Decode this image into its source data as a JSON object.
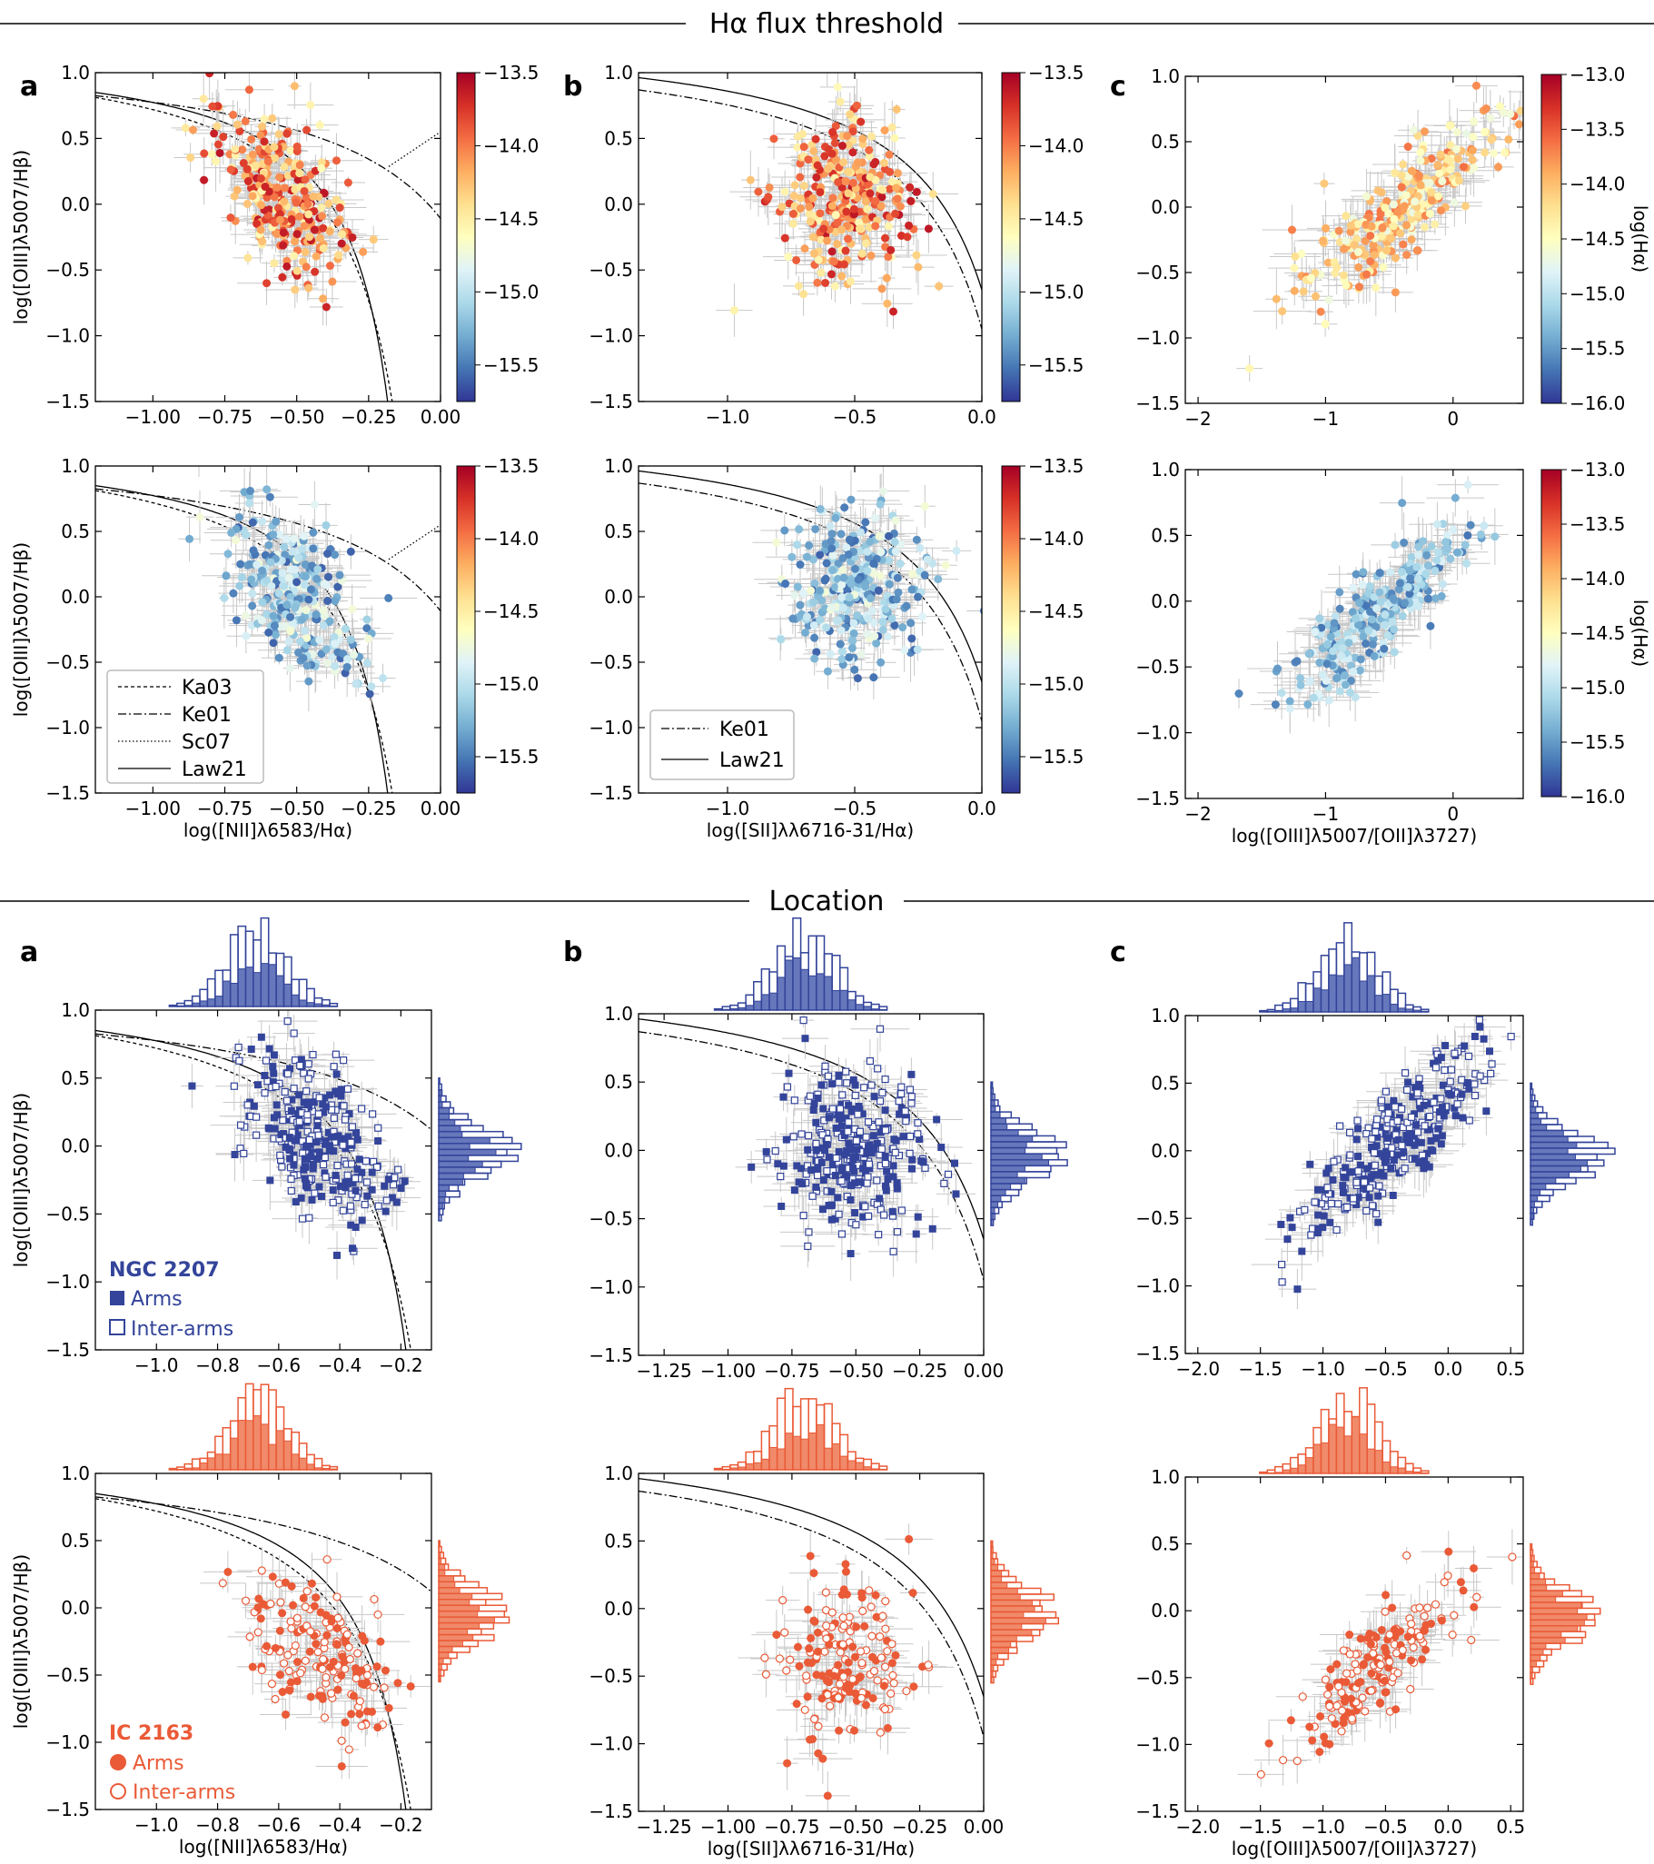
{
  "sections": {
    "top": "Hα flux threshold",
    "bottom": "Location"
  },
  "panel_letters": [
    "a",
    "b",
    "c"
  ],
  "labels": {
    "y_o3hb": "log([OIII]λ5007/Hβ)",
    "x_n2": "log([NII]λ6583/Hα)",
    "x_s2": "log([SII]λλ6716-31/Hα)",
    "x_o3o2": "log([OIII]λ5007/[OII]λ3727)",
    "cbar": "log(Hα)"
  },
  "legend_lines": [
    "Ka03",
    "Ke01",
    "Sc07",
    "Law21"
  ],
  "legend_lines_s2": [
    "Ke01",
    "Law21"
  ],
  "groups": {
    "ngc": {
      "name": "NGC 2207",
      "arms": "Arms",
      "inter": "Inter-arms",
      "color": "#33449a"
    },
    "ic": {
      "name": "IC 2163",
      "arms": "Arms",
      "inter": "Inter-arms",
      "color": "#ea5a37"
    }
  },
  "colors": {
    "errorbar": "#c8c8c8"
  },
  "chart_data": [
    {
      "id": "top_a_bright",
      "type": "scatter",
      "xlabel": "",
      "ylabel": "log([OIII]λ5007/Hβ)",
      "xlim": [
        -1.2,
        0.0
      ],
      "ylim": [
        -1.5,
        1.0
      ],
      "xticks": [
        "-1.00",
        "-0.75",
        "-0.50",
        "-0.25",
        "0.00"
      ],
      "yticks": [
        "-1.5",
        "-1.0",
        "-0.5",
        "0.0",
        "0.5",
        "1.0"
      ],
      "colorbar": {
        "range": [
          -15.75,
          -13.5
        ],
        "ticks": [
          "-15.5",
          "-15.0",
          "-14.5",
          "-14.0",
          "-13.5"
        ]
      },
      "cloud": {
        "center": [
          -0.55,
          0.05
        ],
        "color_range": [
          -14.6,
          -13.6
        ]
      },
      "curves": [
        "Ka03",
        "Ke01",
        "Sc07",
        "Law21"
      ]
    },
    {
      "id": "top_b_bright",
      "type": "scatter",
      "xlabel": "",
      "ylabel": "",
      "xlim": [
        -1.35,
        0.0
      ],
      "ylim": [
        -1.5,
        1.0
      ],
      "xticks": [
        "-1.0",
        "-0.5",
        "0.0"
      ],
      "yticks": [
        "-1.5",
        "-1.0",
        "-0.5",
        "0.0",
        "0.5",
        "1.0"
      ],
      "colorbar": {
        "range": [
          -15.75,
          -13.5
        ],
        "ticks": [
          "-15.5",
          "-15.0",
          "-14.5",
          "-14.0",
          "-13.5"
        ]
      },
      "cloud": {
        "center": [
          -0.55,
          0.0
        ],
        "color_range": [
          -14.6,
          -13.6
        ]
      },
      "curves": [
        "Ke01",
        "Law21"
      ]
    },
    {
      "id": "top_c_bright",
      "type": "scatter",
      "xlabel": "",
      "ylabel": "",
      "xlim": [
        -2.1,
        0.55
      ],
      "ylim": [
        -1.5,
        1.0
      ],
      "xticks": [
        "-2",
        "-1",
        "0"
      ],
      "yticks": [
        "-1.5",
        "-1.0",
        "-0.5",
        "0.0",
        "0.5",
        "1.0"
      ],
      "colorbar": {
        "range": [
          -16.0,
          -13.0
        ],
        "ticks": [
          "-16.0",
          "-15.5",
          "-15.0",
          "-14.5",
          "-14.0",
          "-13.5",
          "-13.0"
        ],
        "label": "log(Hα)"
      },
      "cloud": {
        "center": [
          -0.4,
          0.0
        ],
        "color_range": [
          -14.7,
          -13.6
        ]
      }
    },
    {
      "id": "top_a_faint",
      "type": "scatter",
      "xlabel": "log([NII]λ6583/Hα)",
      "ylabel": "log([OIII]λ5007/Hβ)",
      "xlim": [
        -1.2,
        0.0
      ],
      "ylim": [
        -1.5,
        1.0
      ],
      "xticks": [
        "-1.00",
        "-0.75",
        "-0.50",
        "-0.25",
        "0.00"
      ],
      "yticks": [
        "-1.5",
        "-1.0",
        "-0.5",
        "0.0",
        "0.5",
        "1.0"
      ],
      "colorbar": {
        "range": [
          -15.75,
          -13.5
        ],
        "ticks": [
          "-15.5",
          "-15.0",
          "-14.5",
          "-14.0",
          "-13.5"
        ]
      },
      "cloud": {
        "center": [
          -0.5,
          0.0
        ],
        "color_range": [
          -15.6,
          -14.7
        ]
      },
      "curves": [
        "Ka03",
        "Ke01",
        "Sc07",
        "Law21"
      ]
    },
    {
      "id": "top_b_faint",
      "type": "scatter",
      "xlabel": "log([SII]λλ6716-31/Hα)",
      "ylabel": "",
      "xlim": [
        -1.35,
        0.0
      ],
      "ylim": [
        -1.5,
        1.0
      ],
      "xticks": [
        "-1.0",
        "-0.5",
        "0.0"
      ],
      "yticks": [
        "-1.5",
        "-1.0",
        "-0.5",
        "0.0",
        "0.5",
        "1.0"
      ],
      "colorbar": {
        "range": [
          -15.75,
          -13.5
        ],
        "ticks": [
          "-15.5",
          "-15.0",
          "-14.5",
          "-14.0",
          "-13.5"
        ]
      },
      "cloud": {
        "center": [
          -0.5,
          0.05
        ],
        "color_range": [
          -15.6,
          -14.7
        ]
      },
      "curves": [
        "Ke01",
        "Law21"
      ]
    },
    {
      "id": "top_c_faint",
      "type": "scatter",
      "xlabel": "log([OIII]λ5007/[OII]λ3727)",
      "ylabel": "",
      "xlim": [
        -2.1,
        0.55
      ],
      "ylim": [
        -1.5,
        1.0
      ],
      "xticks": [
        "-2",
        "-1",
        "0"
      ],
      "yticks": [
        "-1.5",
        "-1.0",
        "-0.5",
        "0.0",
        "0.5",
        "1.0"
      ],
      "colorbar": {
        "range": [
          -16.0,
          -13.0
        ],
        "ticks": [
          "-16.0",
          "-15.5",
          "-15.0",
          "-14.5",
          "-14.0",
          "-13.5",
          "-13.0"
        ],
        "label": "log(Hα)"
      },
      "cloud": {
        "center": [
          -0.6,
          -0.1
        ],
        "color_range": [
          -15.7,
          -14.8
        ]
      }
    },
    {
      "id": "loc_a_ngc",
      "type": "scatter",
      "xlabel": "",
      "ylabel": "log([OIII]λ5007/Hβ)",
      "xlim": [
        -1.2,
        -0.1
      ],
      "ylim": [
        -1.5,
        1.0
      ],
      "xticks": [
        "-1.0",
        "-0.8",
        "-0.6",
        "-0.4",
        "-0.2"
      ],
      "yticks": [
        "-1.5",
        "-1.0",
        "-0.5",
        "0.0",
        "0.5",
        "1.0"
      ],
      "series": [
        {
          "name": "Arms",
          "marker": "filled-square"
        },
        {
          "name": "Inter-arms",
          "marker": "open-square"
        }
      ],
      "cloud": {
        "center": [
          -0.48,
          0.05
        ]
      },
      "curves": [
        "Ka03",
        "Ke01",
        "Law21"
      ]
    },
    {
      "id": "loc_b_ngc",
      "type": "scatter",
      "xlabel": "",
      "ylabel": "",
      "xlim": [
        -1.35,
        0.0
      ],
      "ylim": [
        -1.5,
        1.0
      ],
      "xticks": [
        "-1.25",
        "-1.00",
        "-0.75",
        "-0.50",
        "-0.25",
        "0.00"
      ],
      "yticks": [
        "-1.5",
        "-1.0",
        "-0.5",
        "0.0",
        "0.5",
        "1.0"
      ],
      "series": [
        {
          "name": "Arms",
          "marker": "filled-square"
        },
        {
          "name": "Inter-arms",
          "marker": "open-square"
        }
      ],
      "cloud": {
        "center": [
          -0.5,
          0.0
        ]
      },
      "curves": [
        "Ke01",
        "Law21"
      ]
    },
    {
      "id": "loc_c_ngc",
      "type": "scatter",
      "xlabel": "",
      "ylabel": "",
      "xlim": [
        -2.1,
        0.6
      ],
      "ylim": [
        -1.5,
        1.0
      ],
      "xticks": [
        "-2.0",
        "-1.5",
        "-1.0",
        "-0.5",
        "0.0",
        "0.5"
      ],
      "yticks": [
        "-1.5",
        "-1.0",
        "-0.5",
        "0.0",
        "0.5",
        "1.0"
      ],
      "series": [
        {
          "name": "Arms",
          "marker": "filled-square"
        },
        {
          "name": "Inter-arms",
          "marker": "open-square"
        }
      ],
      "cloud": {
        "center": [
          -0.45,
          0.05
        ]
      }
    },
    {
      "id": "loc_a_ic",
      "type": "scatter",
      "xlabel": "log([NII]λ6583/Hα)",
      "ylabel": "log([OIII]λ5007/Hβ)",
      "xlim": [
        -1.2,
        -0.1
      ],
      "ylim": [
        -1.5,
        1.0
      ],
      "xticks": [
        "-1.0",
        "-0.8",
        "-0.6",
        "-0.4",
        "-0.2"
      ],
      "yticks": [
        "-1.5",
        "-1.0",
        "-0.5",
        "0.0",
        "0.5",
        "1.0"
      ],
      "series": [
        {
          "name": "Arms",
          "marker": "filled-circle"
        },
        {
          "name": "Inter-arms",
          "marker": "open-circle"
        }
      ],
      "cloud": {
        "center": [
          -0.47,
          -0.35
        ]
      },
      "curves": [
        "Ka03",
        "Ke01",
        "Law21"
      ]
    },
    {
      "id": "loc_b_ic",
      "type": "scatter",
      "xlabel": "log([SII]λλ6716-31/Hα)",
      "ylabel": "",
      "xlim": [
        -1.35,
        0.0
      ],
      "ylim": [
        -1.5,
        1.0
      ],
      "xticks": [
        "-1.25",
        "-1.00",
        "-0.75",
        "-0.50",
        "-0.25",
        "0.00"
      ],
      "yticks": [
        "-1.5",
        "-1.0",
        "-0.5",
        "0.0",
        "0.5",
        "1.0"
      ],
      "series": [
        {
          "name": "Arms",
          "marker": "filled-circle"
        },
        {
          "name": "Inter-arms",
          "marker": "open-circle"
        }
      ],
      "cloud": {
        "center": [
          -0.55,
          -0.4
        ]
      },
      "curves": [
        "Ke01",
        "Law21"
      ]
    },
    {
      "id": "loc_c_ic",
      "type": "scatter",
      "xlabel": "log([OIII]λ5007/[OII]λ3727)",
      "ylabel": "",
      "xlim": [
        -2.1,
        0.6
      ],
      "ylim": [
        -1.5,
        1.0
      ],
      "xticks": [
        "-2.0",
        "-1.5",
        "-1.0",
        "-0.5",
        "0.0",
        "0.5"
      ],
      "yticks": [
        "-1.5",
        "-1.0",
        "-0.5",
        "0.0",
        "0.5",
        "1.0"
      ],
      "series": [
        {
          "name": "Arms",
          "marker": "filled-circle"
        },
        {
          "name": "Inter-arms",
          "marker": "open-circle"
        }
      ],
      "cloud": {
        "center": [
          -0.55,
          -0.4
        ]
      }
    }
  ]
}
